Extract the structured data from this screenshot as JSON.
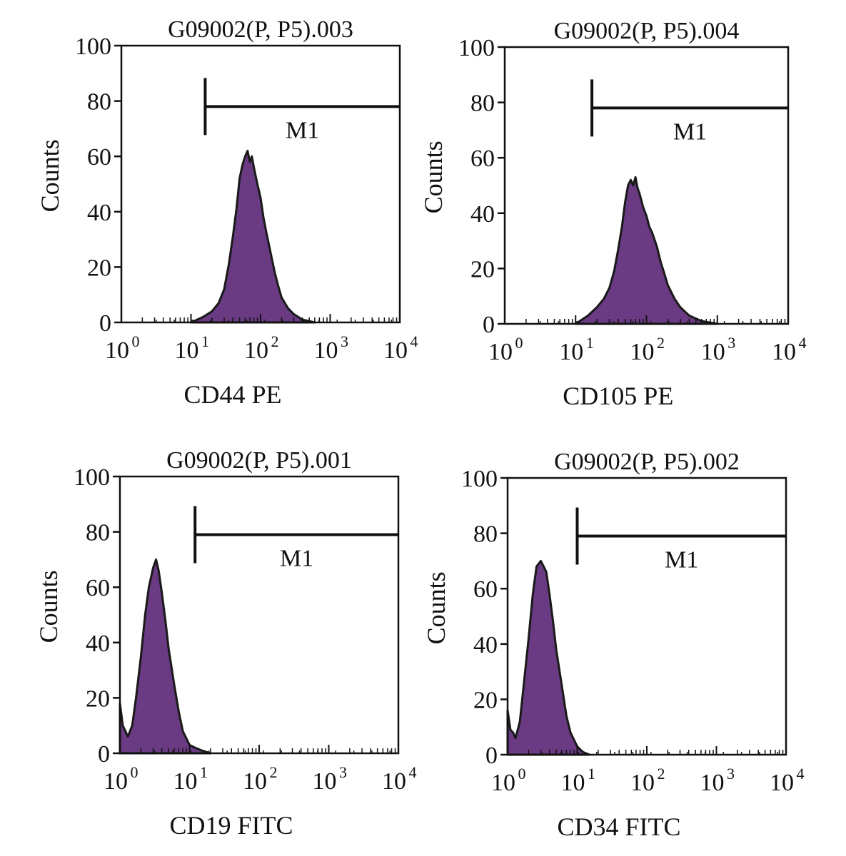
{
  "colors": {
    "fill": "#6a3a82",
    "outline": "#1a1a1a",
    "axis": "#111111"
  },
  "chart_data": [
    {
      "type": "area",
      "title": "G09002(P, P5).003",
      "xlabel": "CD44 PE",
      "ylabel": "Counts",
      "xscale": "log",
      "xlim": [
        1,
        10000
      ],
      "ylim": [
        0,
        100
      ],
      "yticks": [
        0,
        20,
        40,
        60,
        80,
        100
      ],
      "xticks": [
        {
          "base": "10",
          "exp": "0"
        },
        {
          "base": "10",
          "exp": "1"
        },
        {
          "base": "10",
          "exp": "2"
        },
        {
          "base": "10",
          "exp": "3"
        },
        {
          "base": "10",
          "exp": "4"
        }
      ],
      "marker": {
        "label": "M1",
        "x_start": 16,
        "x_end": 10000,
        "y": 78
      },
      "series": [
        {
          "name": "CD44 PE",
          "x": [
            10,
            15,
            20,
            25,
            30,
            35,
            40,
            45,
            50,
            55,
            60,
            65,
            70,
            75,
            80,
            90,
            100,
            110,
            120,
            140,
            160,
            180,
            200,
            250,
            300,
            400,
            600
          ],
          "values": [
            0,
            2,
            4,
            7,
            12,
            21,
            31,
            41,
            52,
            57,
            60,
            62,
            58,
            60,
            56,
            50,
            45,
            38,
            33,
            25,
            18,
            13,
            9,
            5,
            3,
            1,
            0
          ]
        }
      ]
    },
    {
      "type": "area",
      "title": "G09002(P, P5).004",
      "xlabel": "CD105 PE",
      "ylabel": "Counts",
      "xscale": "log",
      "xlim": [
        1,
        10000
      ],
      "ylim": [
        0,
        100
      ],
      "yticks": [
        0,
        20,
        40,
        60,
        80,
        100
      ],
      "xticks": [
        {
          "base": "10",
          "exp": "0"
        },
        {
          "base": "10",
          "exp": "1"
        },
        {
          "base": "10",
          "exp": "2"
        },
        {
          "base": "10",
          "exp": "3"
        },
        {
          "base": "10",
          "exp": "4"
        }
      ],
      "marker": {
        "label": "M1",
        "x_start": 17,
        "x_end": 10000,
        "y": 78
      },
      "series": [
        {
          "name": "CD105 PE",
          "x": [
            10,
            15,
            20,
            25,
            30,
            35,
            40,
            45,
            50,
            55,
            60,
            65,
            70,
            75,
            80,
            90,
            100,
            110,
            120,
            140,
            160,
            180,
            200,
            250,
            300,
            400,
            600,
            1000
          ],
          "values": [
            0,
            3,
            6,
            9,
            13,
            19,
            27,
            35,
            44,
            50,
            52,
            50,
            53,
            49,
            47,
            42,
            39,
            35,
            33,
            28,
            22,
            18,
            14,
            9,
            6,
            3,
            1,
            0
          ]
        }
      ]
    },
    {
      "type": "area",
      "title": "G09002(P, P5).001",
      "xlabel": "CD19 FITC",
      "ylabel": "Counts",
      "xscale": "log",
      "xlim": [
        1,
        10000
      ],
      "ylim": [
        0,
        100
      ],
      "yticks": [
        0,
        20,
        40,
        60,
        80,
        100
      ],
      "xticks": [
        {
          "base": "10",
          "exp": "0"
        },
        {
          "base": "10",
          "exp": "1"
        },
        {
          "base": "10",
          "exp": "2"
        },
        {
          "base": "10",
          "exp": "3"
        },
        {
          "base": "10",
          "exp": "4"
        }
      ],
      "marker": {
        "label": "M1",
        "x_start": 12,
        "x_end": 10000,
        "y": 79
      },
      "series": [
        {
          "name": "CD19 FITC",
          "x": [
            1,
            1.1,
            1.2,
            1.3,
            1.5,
            1.7,
            2,
            2.3,
            2.6,
            3,
            3.3,
            3.6,
            4,
            4.5,
            5,
            6,
            7,
            8,
            10,
            12,
            15,
            20
          ],
          "values": [
            18,
            10,
            8,
            6,
            10,
            20,
            35,
            50,
            60,
            67,
            70,
            66,
            58,
            48,
            38,
            25,
            15,
            8,
            3,
            2,
            1,
            0
          ]
        }
      ]
    },
    {
      "type": "area",
      "title": "G09002(P, P5).002",
      "xlabel": "CD34 FITC",
      "ylabel": "Counts",
      "xscale": "log",
      "xlim": [
        1,
        10000
      ],
      "ylim": [
        0,
        100
      ],
      "yticks": [
        0,
        20,
        40,
        60,
        80,
        100
      ],
      "xticks": [
        {
          "base": "10",
          "exp": "0"
        },
        {
          "base": "10",
          "exp": "1"
        },
        {
          "base": "10",
          "exp": "2"
        },
        {
          "base": "10",
          "exp": "3"
        },
        {
          "base": "10",
          "exp": "4"
        }
      ],
      "marker": {
        "label": "M1",
        "x_start": 10,
        "x_end": 10000,
        "y": 79
      },
      "series": [
        {
          "name": "CD34 FITC",
          "x": [
            1,
            1.1,
            1.2,
            1.3,
            1.5,
            1.7,
            2,
            2.3,
            2.6,
            3,
            3.3,
            3.6,
            4,
            4.5,
            5,
            6,
            7,
            8,
            10,
            12,
            15
          ],
          "values": [
            16,
            9,
            8,
            6,
            12,
            25,
            42,
            58,
            68,
            70,
            68,
            66,
            58,
            48,
            38,
            25,
            14,
            8,
            3,
            1,
            0
          ]
        }
      ]
    }
  ]
}
